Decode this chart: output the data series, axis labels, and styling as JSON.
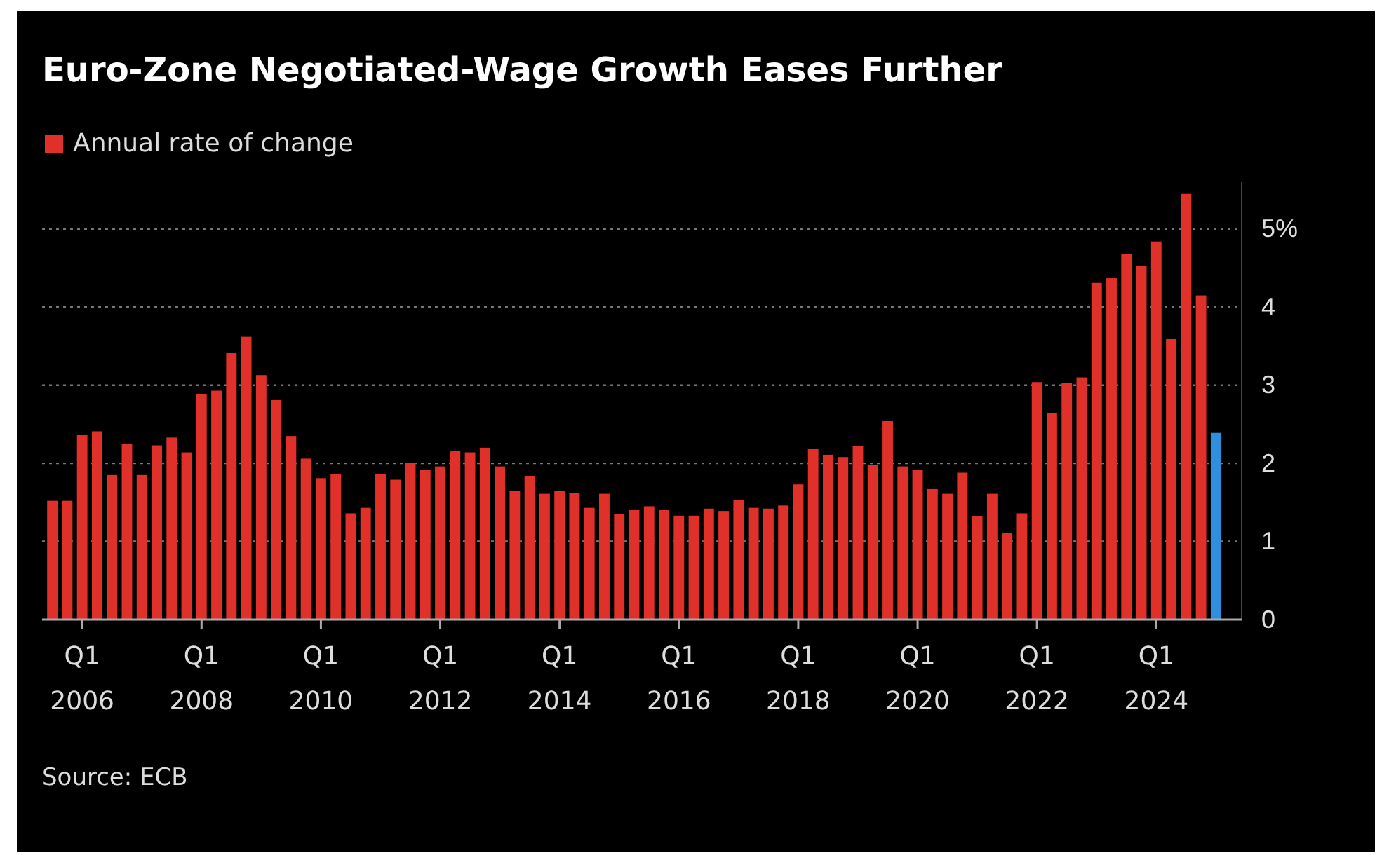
{
  "chart_data": {
    "type": "bar",
    "title": "Euro-Zone Negotiated-Wage Growth Eases Further",
    "categories": [
      null,
      null,
      "Q1 2006",
      null,
      null,
      null,
      null,
      null,
      null,
      null,
      "Q1 2008",
      null,
      null,
      null,
      null,
      null,
      null,
      null,
      "Q1 2010",
      null,
      null,
      null,
      null,
      null,
      null,
      null,
      "Q1 2012",
      null,
      null,
      null,
      null,
      null,
      null,
      null,
      "Q1 2014",
      null,
      null,
      null,
      null,
      null,
      null,
      null,
      "Q1 2016",
      null,
      null,
      null,
      null,
      null,
      null,
      null,
      "Q1 2018",
      null,
      null,
      null,
      null,
      null,
      null,
      null,
      "Q1 2020",
      null,
      null,
      null,
      null,
      null,
      null,
      null,
      "Q1 2022",
      null,
      null,
      null,
      null,
      null,
      null,
      null,
      "Q1 2024",
      null,
      null,
      null,
      null
    ],
    "series": [
      {
        "name": "Annual rate of change",
        "color": "#e0302a",
        "values": [
          1.52,
          1.52,
          2.36,
          2.41,
          1.85,
          2.25,
          1.85,
          2.23,
          2.33,
          2.14,
          2.89,
          2.93,
          3.41,
          3.62,
          3.13,
          2.81,
          2.35,
          2.06,
          1.81,
          1.86,
          1.36,
          1.43,
          1.86,
          1.79,
          2.01,
          1.92,
          1.96,
          2.16,
          2.14,
          2.2,
          1.96,
          1.65,
          1.84,
          1.61,
          1.65,
          1.62,
          1.43,
          1.61,
          1.35,
          1.4,
          1.45,
          1.4,
          1.33,
          1.33,
          1.42,
          1.39,
          1.53,
          1.43,
          1.42,
          1.46,
          1.73,
          2.19,
          2.11,
          2.08,
          2.22,
          1.98,
          2.54,
          1.96,
          1.92,
          1.67,
          1.61,
          1.88,
          1.32,
          1.61,
          1.11,
          1.36,
          3.04,
          2.64,
          3.03,
          3.1,
          4.31,
          4.37,
          4.68,
          4.53,
          4.84,
          3.59,
          5.45,
          4.15,
          2.39
        ],
        "colors": [
          "#e0302a",
          "#e0302a",
          "#e0302a",
          "#e0302a",
          "#e0302a",
          "#e0302a",
          "#e0302a",
          "#e0302a",
          "#e0302a",
          "#e0302a",
          "#e0302a",
          "#e0302a",
          "#e0302a",
          "#e0302a",
          "#e0302a",
          "#e0302a",
          "#e0302a",
          "#e0302a",
          "#e0302a",
          "#e0302a",
          "#e0302a",
          "#e0302a",
          "#e0302a",
          "#e0302a",
          "#e0302a",
          "#e0302a",
          "#e0302a",
          "#e0302a",
          "#e0302a",
          "#e0302a",
          "#e0302a",
          "#e0302a",
          "#e0302a",
          "#e0302a",
          "#e0302a",
          "#e0302a",
          "#e0302a",
          "#e0302a",
          "#e0302a",
          "#e0302a",
          "#e0302a",
          "#e0302a",
          "#e0302a",
          "#e0302a",
          "#e0302a",
          "#e0302a",
          "#e0302a",
          "#e0302a",
          "#e0302a",
          "#e0302a",
          "#e0302a",
          "#e0302a",
          "#e0302a",
          "#e0302a",
          "#e0302a",
          "#e0302a",
          "#e0302a",
          "#e0302a",
          "#e0302a",
          "#e0302a",
          "#e0302a",
          "#e0302a",
          "#e0302a",
          "#e0302a",
          "#e0302a",
          "#e0302a",
          "#e0302a",
          "#e0302a",
          "#e0302a",
          "#e0302a",
          "#e0302a",
          "#e0302a",
          "#e0302a",
          "#e0302a",
          "#e0302a",
          "#e0302a",
          "#e0302a",
          "#e0302a",
          "#2f8fdc"
        ]
      }
    ],
    "ylim": [
      0,
      5.6
    ],
    "yticks": [
      0,
      1,
      2,
      3,
      4,
      {
        "value": 5,
        "label": "5%"
      }
    ],
    "grid": "y",
    "legend": "top left",
    "annotations": [
      "Source: ECB"
    ]
  }
}
